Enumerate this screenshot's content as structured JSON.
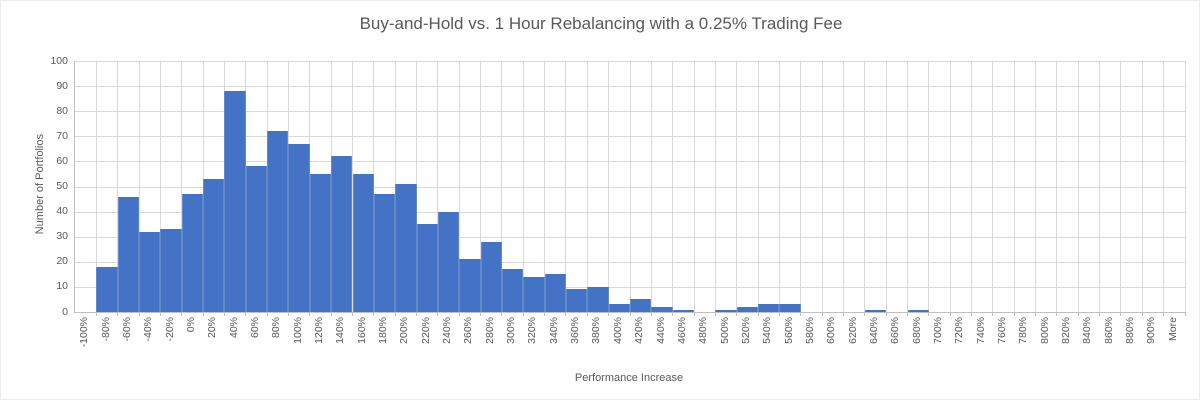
{
  "chart_data": {
    "type": "bar",
    "title": "Buy-and-Hold vs. 1 Hour Rebalancing with a 0.25% Trading Fee",
    "xlabel": "Performance Increase",
    "ylabel": "Number of Portfolios",
    "categories": [
      "-100%",
      "-80%",
      "-60%",
      "-40%",
      "-20%",
      "0%",
      "20%",
      "40%",
      "60%",
      "80%",
      "100%",
      "120%",
      "140%",
      "160%",
      "180%",
      "200%",
      "220%",
      "240%",
      "260%",
      "280%",
      "300%",
      "320%",
      "340%",
      "360%",
      "380%",
      "400%",
      "420%",
      "440%",
      "460%",
      "480%",
      "500%",
      "520%",
      "540%",
      "560%",
      "580%",
      "600%",
      "620%",
      "640%",
      "660%",
      "680%",
      "700%",
      "720%",
      "740%",
      "760%",
      "780%",
      "800%",
      "820%",
      "840%",
      "860%",
      "880%",
      "900%",
      "More"
    ],
    "values": [
      0,
      18,
      46,
      32,
      33,
      47,
      53,
      88,
      58,
      72,
      67,
      55,
      62,
      55,
      47,
      51,
      35,
      40,
      21,
      28,
      17,
      14,
      15,
      9,
      10,
      3,
      5,
      2,
      1,
      0,
      1,
      2,
      3,
      3,
      0,
      0,
      0,
      1,
      0,
      1,
      0,
      0,
      0,
      0,
      0,
      0,
      0,
      0,
      0,
      0,
      0,
      0
    ],
    "ylim": [
      0,
      100
    ],
    "yticks": [
      0,
      10,
      20,
      30,
      40,
      50,
      60,
      70,
      80,
      90,
      100
    ],
    "grid": true,
    "legend": "none",
    "bar_color": "#4472c4",
    "gridline_color": "#d9d9d9",
    "axis_color": "#bfbfbf",
    "text_color": "#595959"
  }
}
